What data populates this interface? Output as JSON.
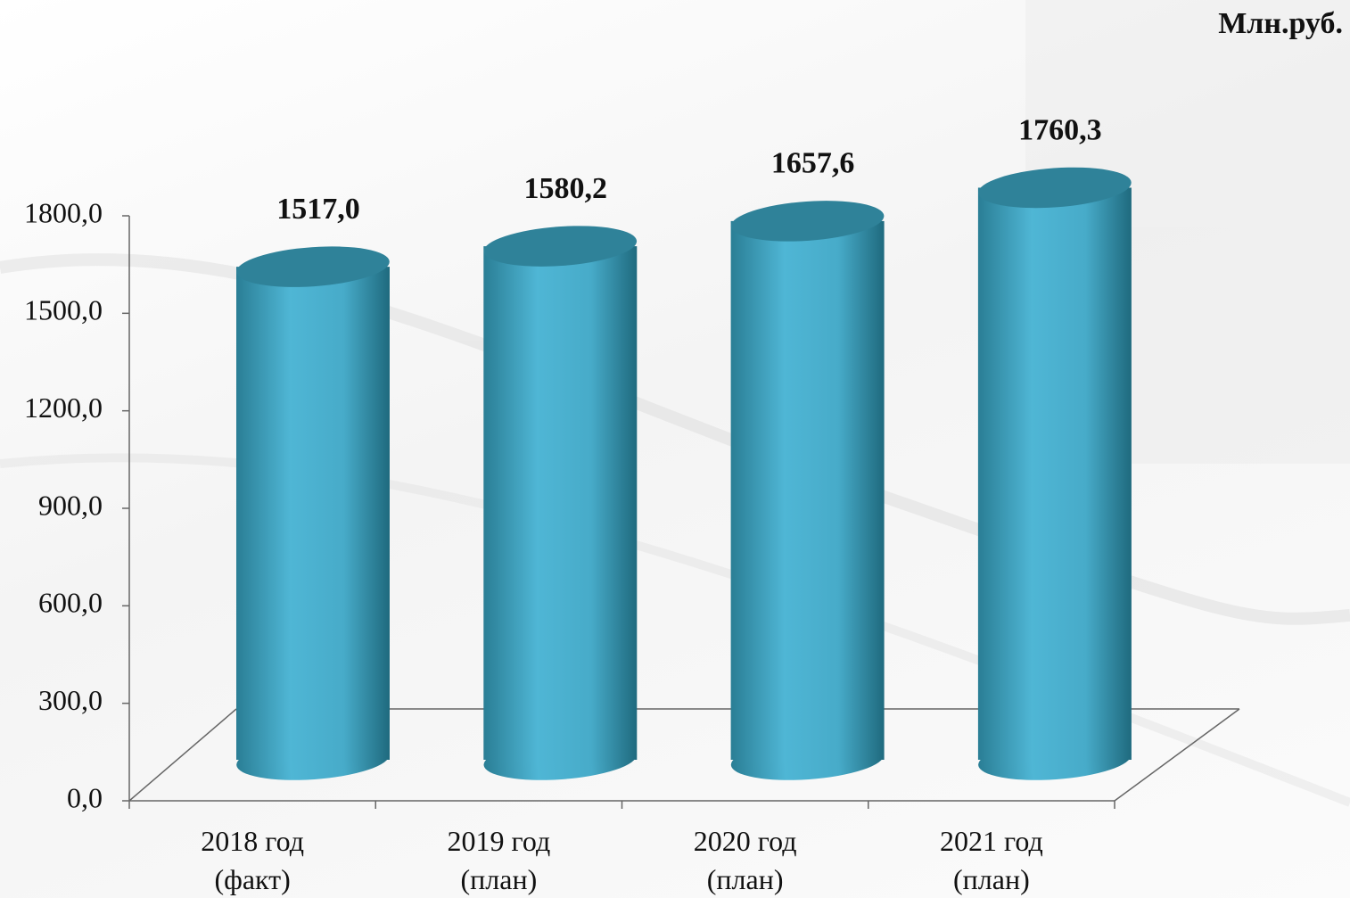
{
  "chart_data": {
    "type": "bar3d",
    "unit_label": "Млн.руб.",
    "categories": [
      "2018 год (факт)",
      "2019 год (план)",
      "2020 год (план)",
      "2021 год (план)"
    ],
    "values": [
      1517.0,
      1580.2,
      1657.6,
      1760.3
    ],
    "value_labels": [
      "1517,0",
      "1580,2",
      "1657,6",
      "1760,3"
    ],
    "color": "#4cb2d1",
    "ylim": [
      0,
      1800
    ],
    "yticks": [
      {
        "value": 0,
        "label": "0,0"
      },
      {
        "value": 300,
        "label": "300,0"
      },
      {
        "value": 600,
        "label": "600,0"
      },
      {
        "value": 900,
        "label": "900,0"
      },
      {
        "value": 1200,
        "label": "1200,0"
      },
      {
        "value": 1500,
        "label": "1500,0"
      },
      {
        "value": 1800,
        "label": "1800,0"
      }
    ],
    "grid": false
  }
}
